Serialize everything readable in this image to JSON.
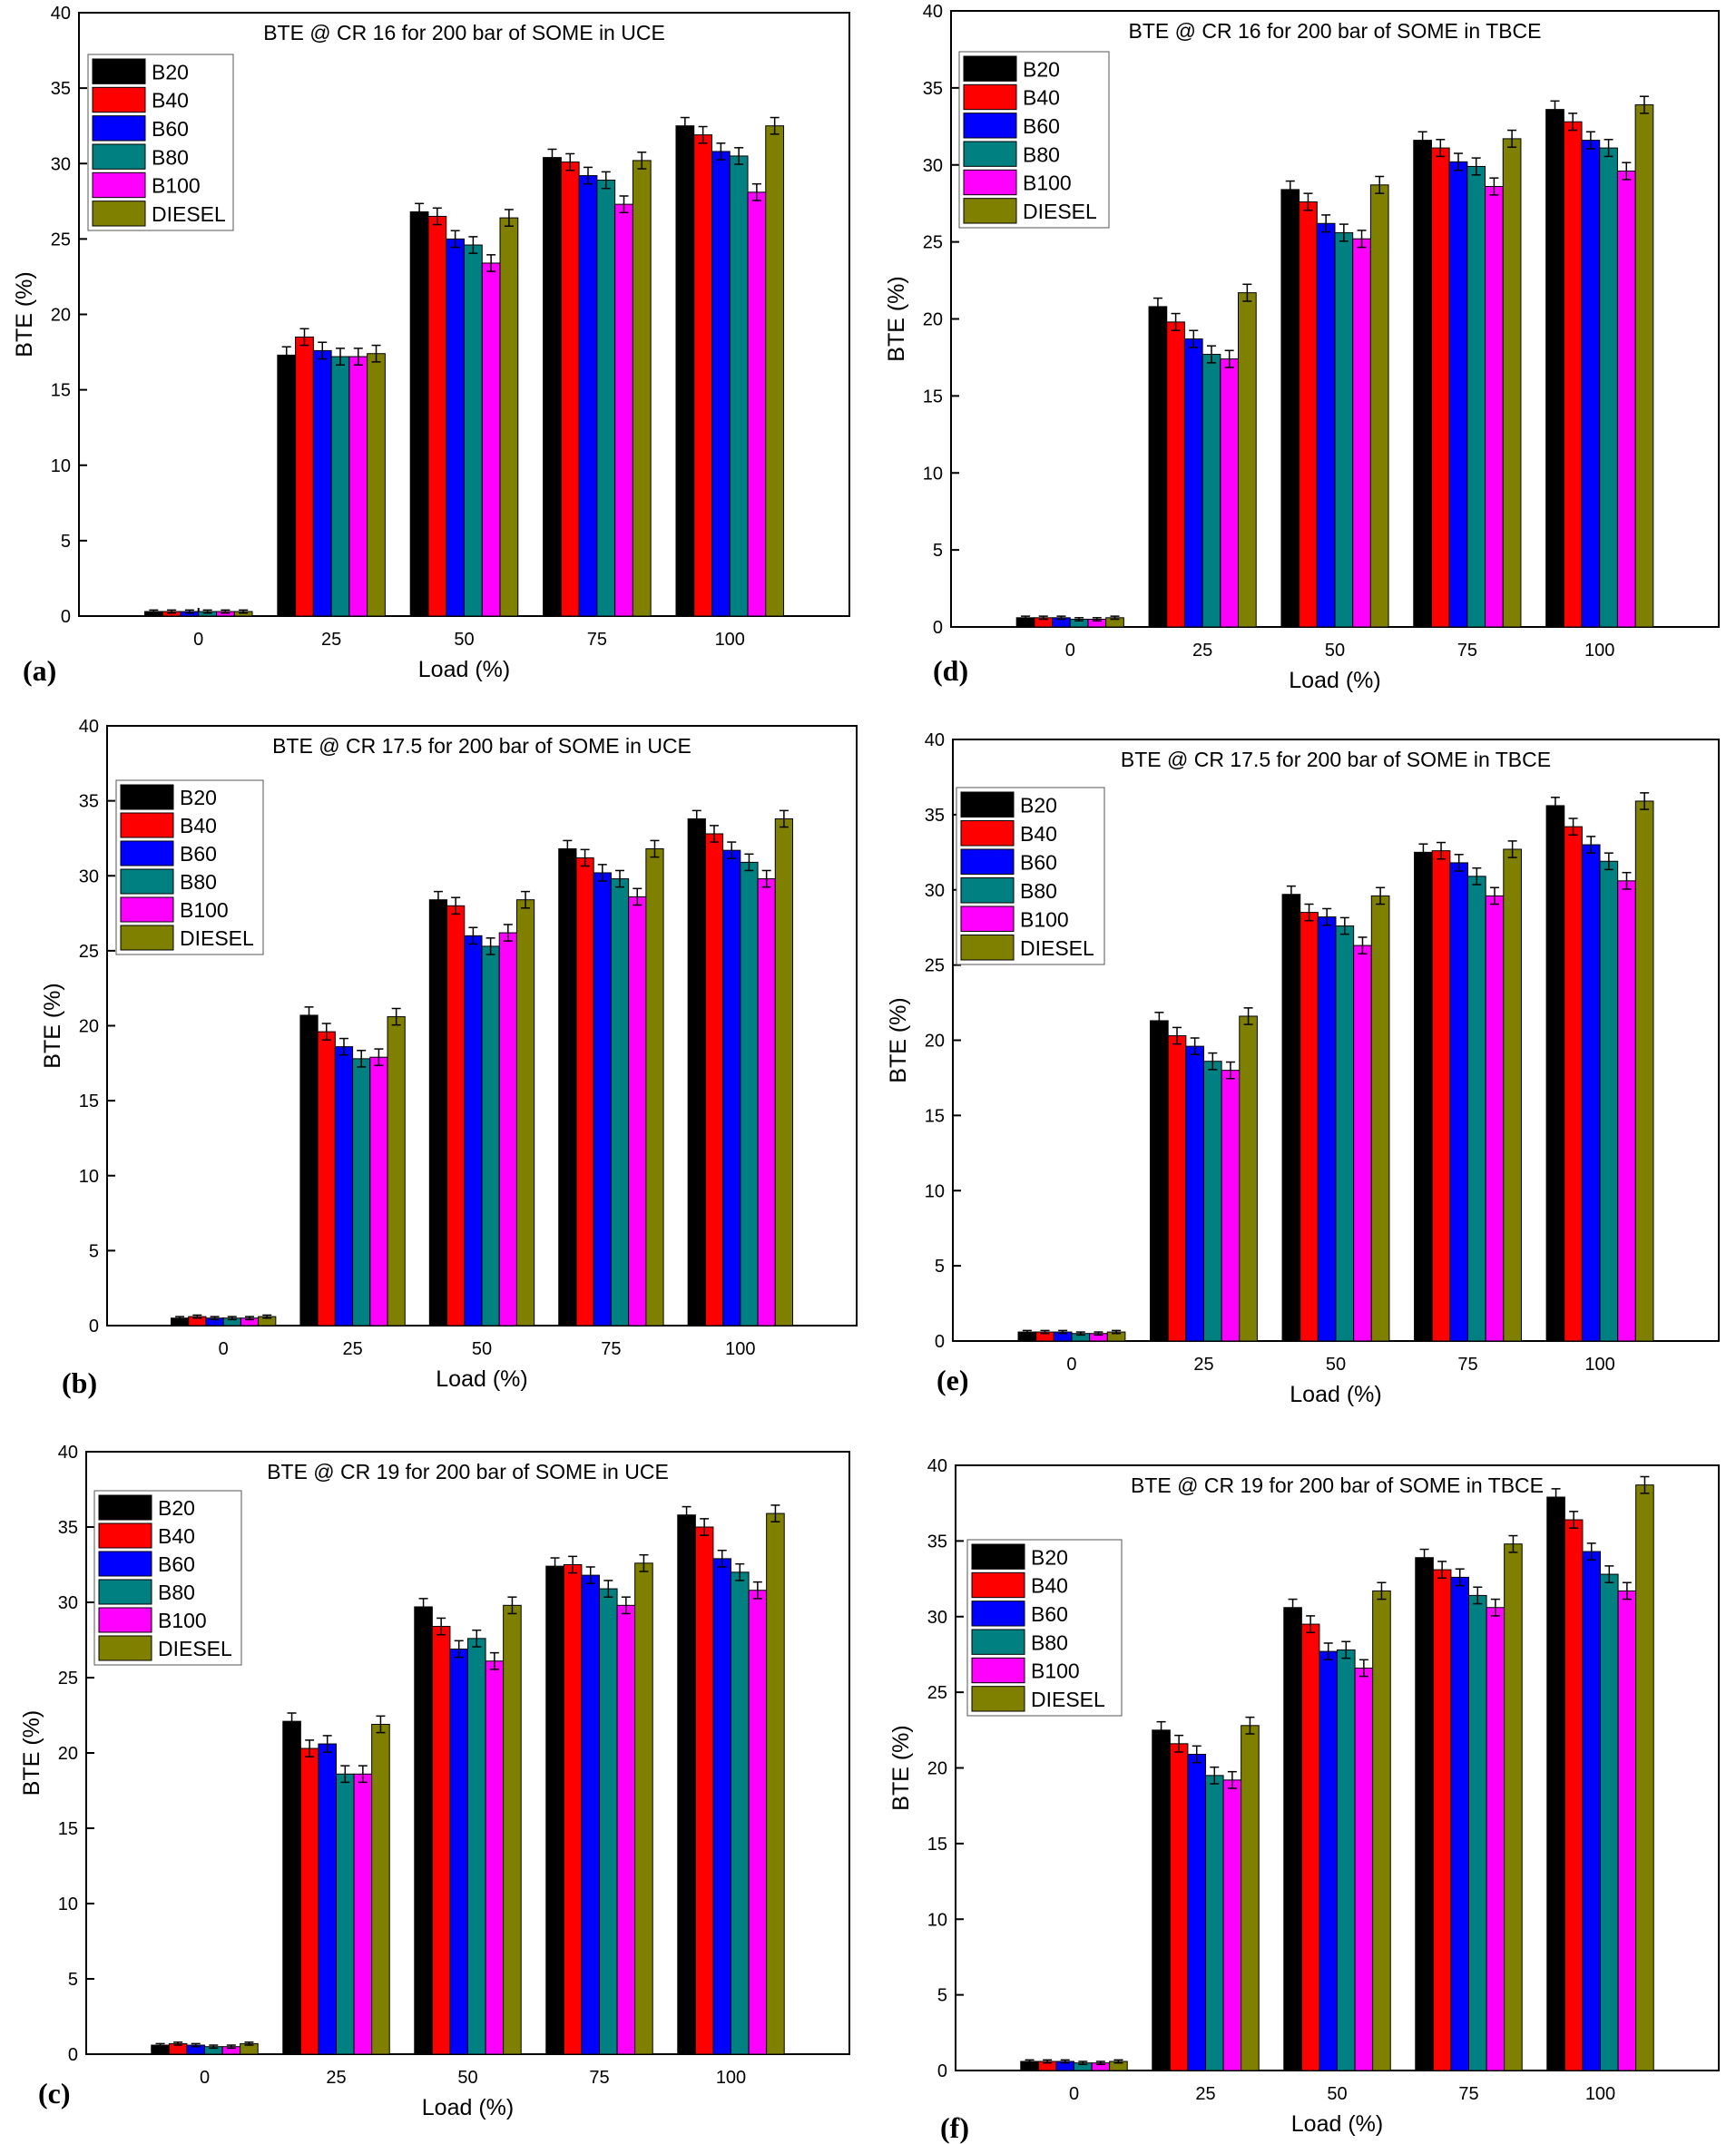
{
  "series_colors": {
    "B20": "#000000",
    "B40": "#ff0000",
    "B60": "#0000ff",
    "B80": "#008080",
    "B100": "#ff00ff",
    "DIESEL": "#808000"
  },
  "chart_data": [
    {
      "panel": "(a)",
      "type": "bar",
      "title": "BTE @ CR 16  for 200 bar of SOME in UCE",
      "xlabel": "Load (%)",
      "ylabel": "BTE (%)",
      "ylim": [
        0,
        40
      ],
      "yticks": [
        0,
        5,
        10,
        15,
        20,
        25,
        30,
        35,
        40
      ],
      "categories": [
        "0",
        "25",
        "50",
        "75",
        "100"
      ],
      "legend_position": "top-left",
      "error_bars": true,
      "series": [
        {
          "name": "B20",
          "values": [
            0.3,
            17.3,
            26.8,
            30.4,
            32.5
          ]
        },
        {
          "name": "B40",
          "values": [
            0.3,
            18.5,
            26.5,
            30.1,
            31.9
          ]
        },
        {
          "name": "B60",
          "values": [
            0.3,
            17.6,
            25.0,
            29.2,
            30.8
          ]
        },
        {
          "name": "B80",
          "values": [
            0.3,
            17.2,
            24.6,
            28.9,
            30.5
          ]
        },
        {
          "name": "B100",
          "values": [
            0.3,
            17.2,
            23.4,
            27.3,
            28.1
          ]
        },
        {
          "name": "DIESEL",
          "values": [
            0.3,
            17.4,
            26.4,
            30.2,
            32.5
          ]
        }
      ]
    },
    {
      "panel": "(b)",
      "type": "bar",
      "title": "BTE @ CR 17.5  for 200 bar of SOME in UCE",
      "xlabel": "Load (%)",
      "ylabel": "BTE (%)",
      "ylim": [
        0,
        40
      ],
      "yticks": [
        0,
        5,
        10,
        15,
        20,
        25,
        30,
        35,
        40
      ],
      "categories": [
        "0",
        "25",
        "50",
        "75",
        "100"
      ],
      "legend_position": "top-left",
      "error_bars": true,
      "series": [
        {
          "name": "B20",
          "values": [
            0.5,
            20.7,
            28.4,
            31.8,
            33.8
          ]
        },
        {
          "name": "B40",
          "values": [
            0.6,
            19.6,
            28.0,
            31.2,
            32.8
          ]
        },
        {
          "name": "B60",
          "values": [
            0.5,
            18.6,
            26.0,
            30.2,
            31.7
          ]
        },
        {
          "name": "B80",
          "values": [
            0.5,
            17.8,
            25.3,
            29.8,
            30.9
          ]
        },
        {
          "name": "B100",
          "values": [
            0.5,
            17.9,
            26.2,
            28.6,
            29.8
          ]
        },
        {
          "name": "DIESEL",
          "values": [
            0.6,
            20.6,
            28.4,
            31.8,
            33.8
          ]
        }
      ]
    },
    {
      "panel": "(c)",
      "type": "bar",
      "title": "BTE @ CR 19  for 200 bar of SOME in UCE",
      "xlabel": "Load (%)",
      "ylabel": "BTE (%)",
      "ylim": [
        0,
        40
      ],
      "yticks": [
        0,
        5,
        10,
        15,
        20,
        25,
        30,
        35,
        40
      ],
      "categories": [
        "0",
        "25",
        "50",
        "75",
        "100"
      ],
      "legend_position": "top-left",
      "error_bars": true,
      "series": [
        {
          "name": "B20",
          "values": [
            0.6,
            22.1,
            29.7,
            32.4,
            35.8
          ]
        },
        {
          "name": "B40",
          "values": [
            0.7,
            20.3,
            28.4,
            32.5,
            35.0
          ]
        },
        {
          "name": "B60",
          "values": [
            0.6,
            20.6,
            26.9,
            31.8,
            32.9
          ]
        },
        {
          "name": "B80",
          "values": [
            0.5,
            18.6,
            27.6,
            30.9,
            32.0
          ]
        },
        {
          "name": "B100",
          "values": [
            0.5,
            18.6,
            26.1,
            29.8,
            30.8
          ]
        },
        {
          "name": "DIESEL",
          "values": [
            0.7,
            21.9,
            29.8,
            32.6,
            35.9
          ]
        }
      ]
    },
    {
      "panel": "(d)",
      "type": "bar",
      "title": "BTE @ CR 16  for 200 bar of SOME in TBCE",
      "xlabel": "Load (%)",
      "ylabel": "BTE (%)",
      "ylim": [
        0,
        40
      ],
      "yticks": [
        0,
        5,
        10,
        15,
        20,
        25,
        30,
        35,
        40
      ],
      "categories": [
        "0",
        "25",
        "50",
        "75",
        "100"
      ],
      "legend_position": "top-left",
      "error_bars": true,
      "series": [
        {
          "name": "B20",
          "values": [
            0.6,
            20.8,
            28.4,
            31.6,
            33.6
          ]
        },
        {
          "name": "B40",
          "values": [
            0.6,
            19.8,
            27.6,
            31.1,
            32.8
          ]
        },
        {
          "name": "B60",
          "values": [
            0.6,
            18.7,
            26.2,
            30.2,
            31.6
          ]
        },
        {
          "name": "B80",
          "values": [
            0.5,
            17.7,
            25.6,
            29.9,
            31.1
          ]
        },
        {
          "name": "B100",
          "values": [
            0.5,
            17.4,
            25.2,
            28.6,
            29.6
          ]
        },
        {
          "name": "DIESEL",
          "values": [
            0.6,
            21.7,
            28.7,
            31.7,
            33.9
          ]
        }
      ]
    },
    {
      "panel": "(e)",
      "type": "bar",
      "title": "BTE @ CR 17.5  for 200 bar of SOME in TBCE",
      "xlabel": "Load (%)",
      "ylabel": "BTE (%)",
      "ylim": [
        0,
        40
      ],
      "yticks": [
        0,
        5,
        10,
        15,
        20,
        25,
        30,
        35,
        40
      ],
      "categories": [
        "0",
        "25",
        "50",
        "75",
        "100"
      ],
      "legend_position": "top-left",
      "error_bars": true,
      "series": [
        {
          "name": "B20",
          "values": [
            0.6,
            21.3,
            29.7,
            32.5,
            35.6
          ]
        },
        {
          "name": "B40",
          "values": [
            0.6,
            20.3,
            28.5,
            32.6,
            34.2
          ]
        },
        {
          "name": "B60",
          "values": [
            0.6,
            19.6,
            28.2,
            31.8,
            33.0
          ]
        },
        {
          "name": "B80",
          "values": [
            0.5,
            18.6,
            27.6,
            30.9,
            31.9
          ]
        },
        {
          "name": "B100",
          "values": [
            0.5,
            18.0,
            26.3,
            29.6,
            30.6
          ]
        },
        {
          "name": "DIESEL",
          "values": [
            0.6,
            21.6,
            29.6,
            32.7,
            35.9
          ]
        }
      ]
    },
    {
      "panel": "(f)",
      "type": "bar",
      "title": "BTE @ CR 19  for 200 bar of SOME in TBCE",
      "xlabel": "Load (%)",
      "ylabel": "BTE (%)",
      "ylim": [
        0,
        40
      ],
      "yticks": [
        0,
        5,
        10,
        15,
        20,
        25,
        30,
        35,
        40
      ],
      "categories": [
        "0",
        "25",
        "50",
        "75",
        "100"
      ],
      "legend_position": "top-left",
      "error_bars": true,
      "series": [
        {
          "name": "B20",
          "values": [
            0.6,
            22.5,
            30.6,
            33.9,
            37.9
          ]
        },
        {
          "name": "B40",
          "values": [
            0.6,
            21.6,
            29.5,
            33.1,
            36.4
          ]
        },
        {
          "name": "B60",
          "values": [
            0.6,
            20.9,
            27.7,
            32.6,
            34.3
          ]
        },
        {
          "name": "B80",
          "values": [
            0.5,
            19.5,
            27.8,
            31.4,
            32.8
          ]
        },
        {
          "name": "B100",
          "values": [
            0.5,
            19.2,
            26.6,
            30.6,
            31.7
          ]
        },
        {
          "name": "DIESEL",
          "values": [
            0.6,
            22.8,
            31.7,
            34.8,
            38.7
          ]
        }
      ]
    }
  ]
}
